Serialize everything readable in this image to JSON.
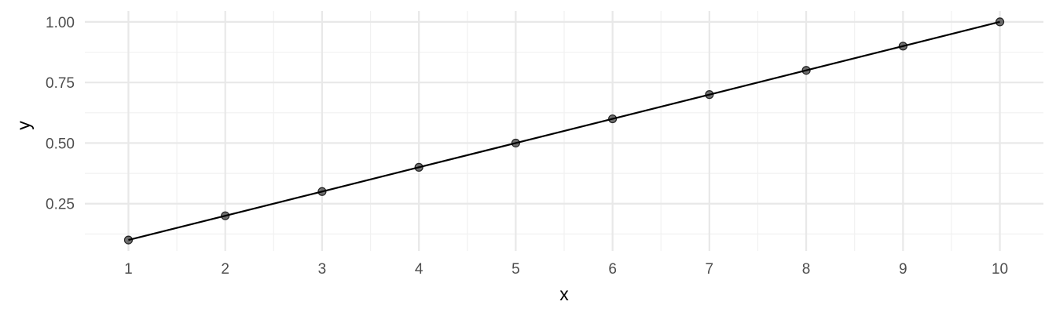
{
  "chart_data": {
    "type": "line",
    "x": [
      1,
      2,
      3,
      4,
      5,
      6,
      7,
      8,
      9,
      10
    ],
    "series": [
      {
        "values": [
          0.1,
          0.2,
          0.3,
          0.4,
          0.5,
          0.6,
          0.7,
          0.8,
          0.9,
          1.0
        ],
        "color": "#000000",
        "markers": true
      }
    ],
    "xlabel": "x",
    "ylabel": "y",
    "xlim": [
      0.55,
      10.45
    ],
    "ylim": [
      0.055,
      1.045
    ],
    "x_ticks": [
      1,
      2,
      3,
      4,
      5,
      6,
      7,
      8,
      9,
      10
    ],
    "x_tick_labels": [
      "1",
      "2",
      "3",
      "4",
      "5",
      "6",
      "7",
      "8",
      "9",
      "10"
    ],
    "y_ticks": [
      0.25,
      0.5,
      0.75,
      1.0
    ],
    "y_tick_labels": [
      "0.25",
      "0.50",
      "0.75",
      "1.00"
    ],
    "x_minor_ticks": [
      1.5,
      2.5,
      3.5,
      4.5,
      5.5,
      6.5,
      7.5,
      8.5,
      9.5
    ],
    "y_minor_ticks": [
      0.125,
      0.375,
      0.625,
      0.875
    ],
    "grid": true,
    "legend": "none"
  }
}
